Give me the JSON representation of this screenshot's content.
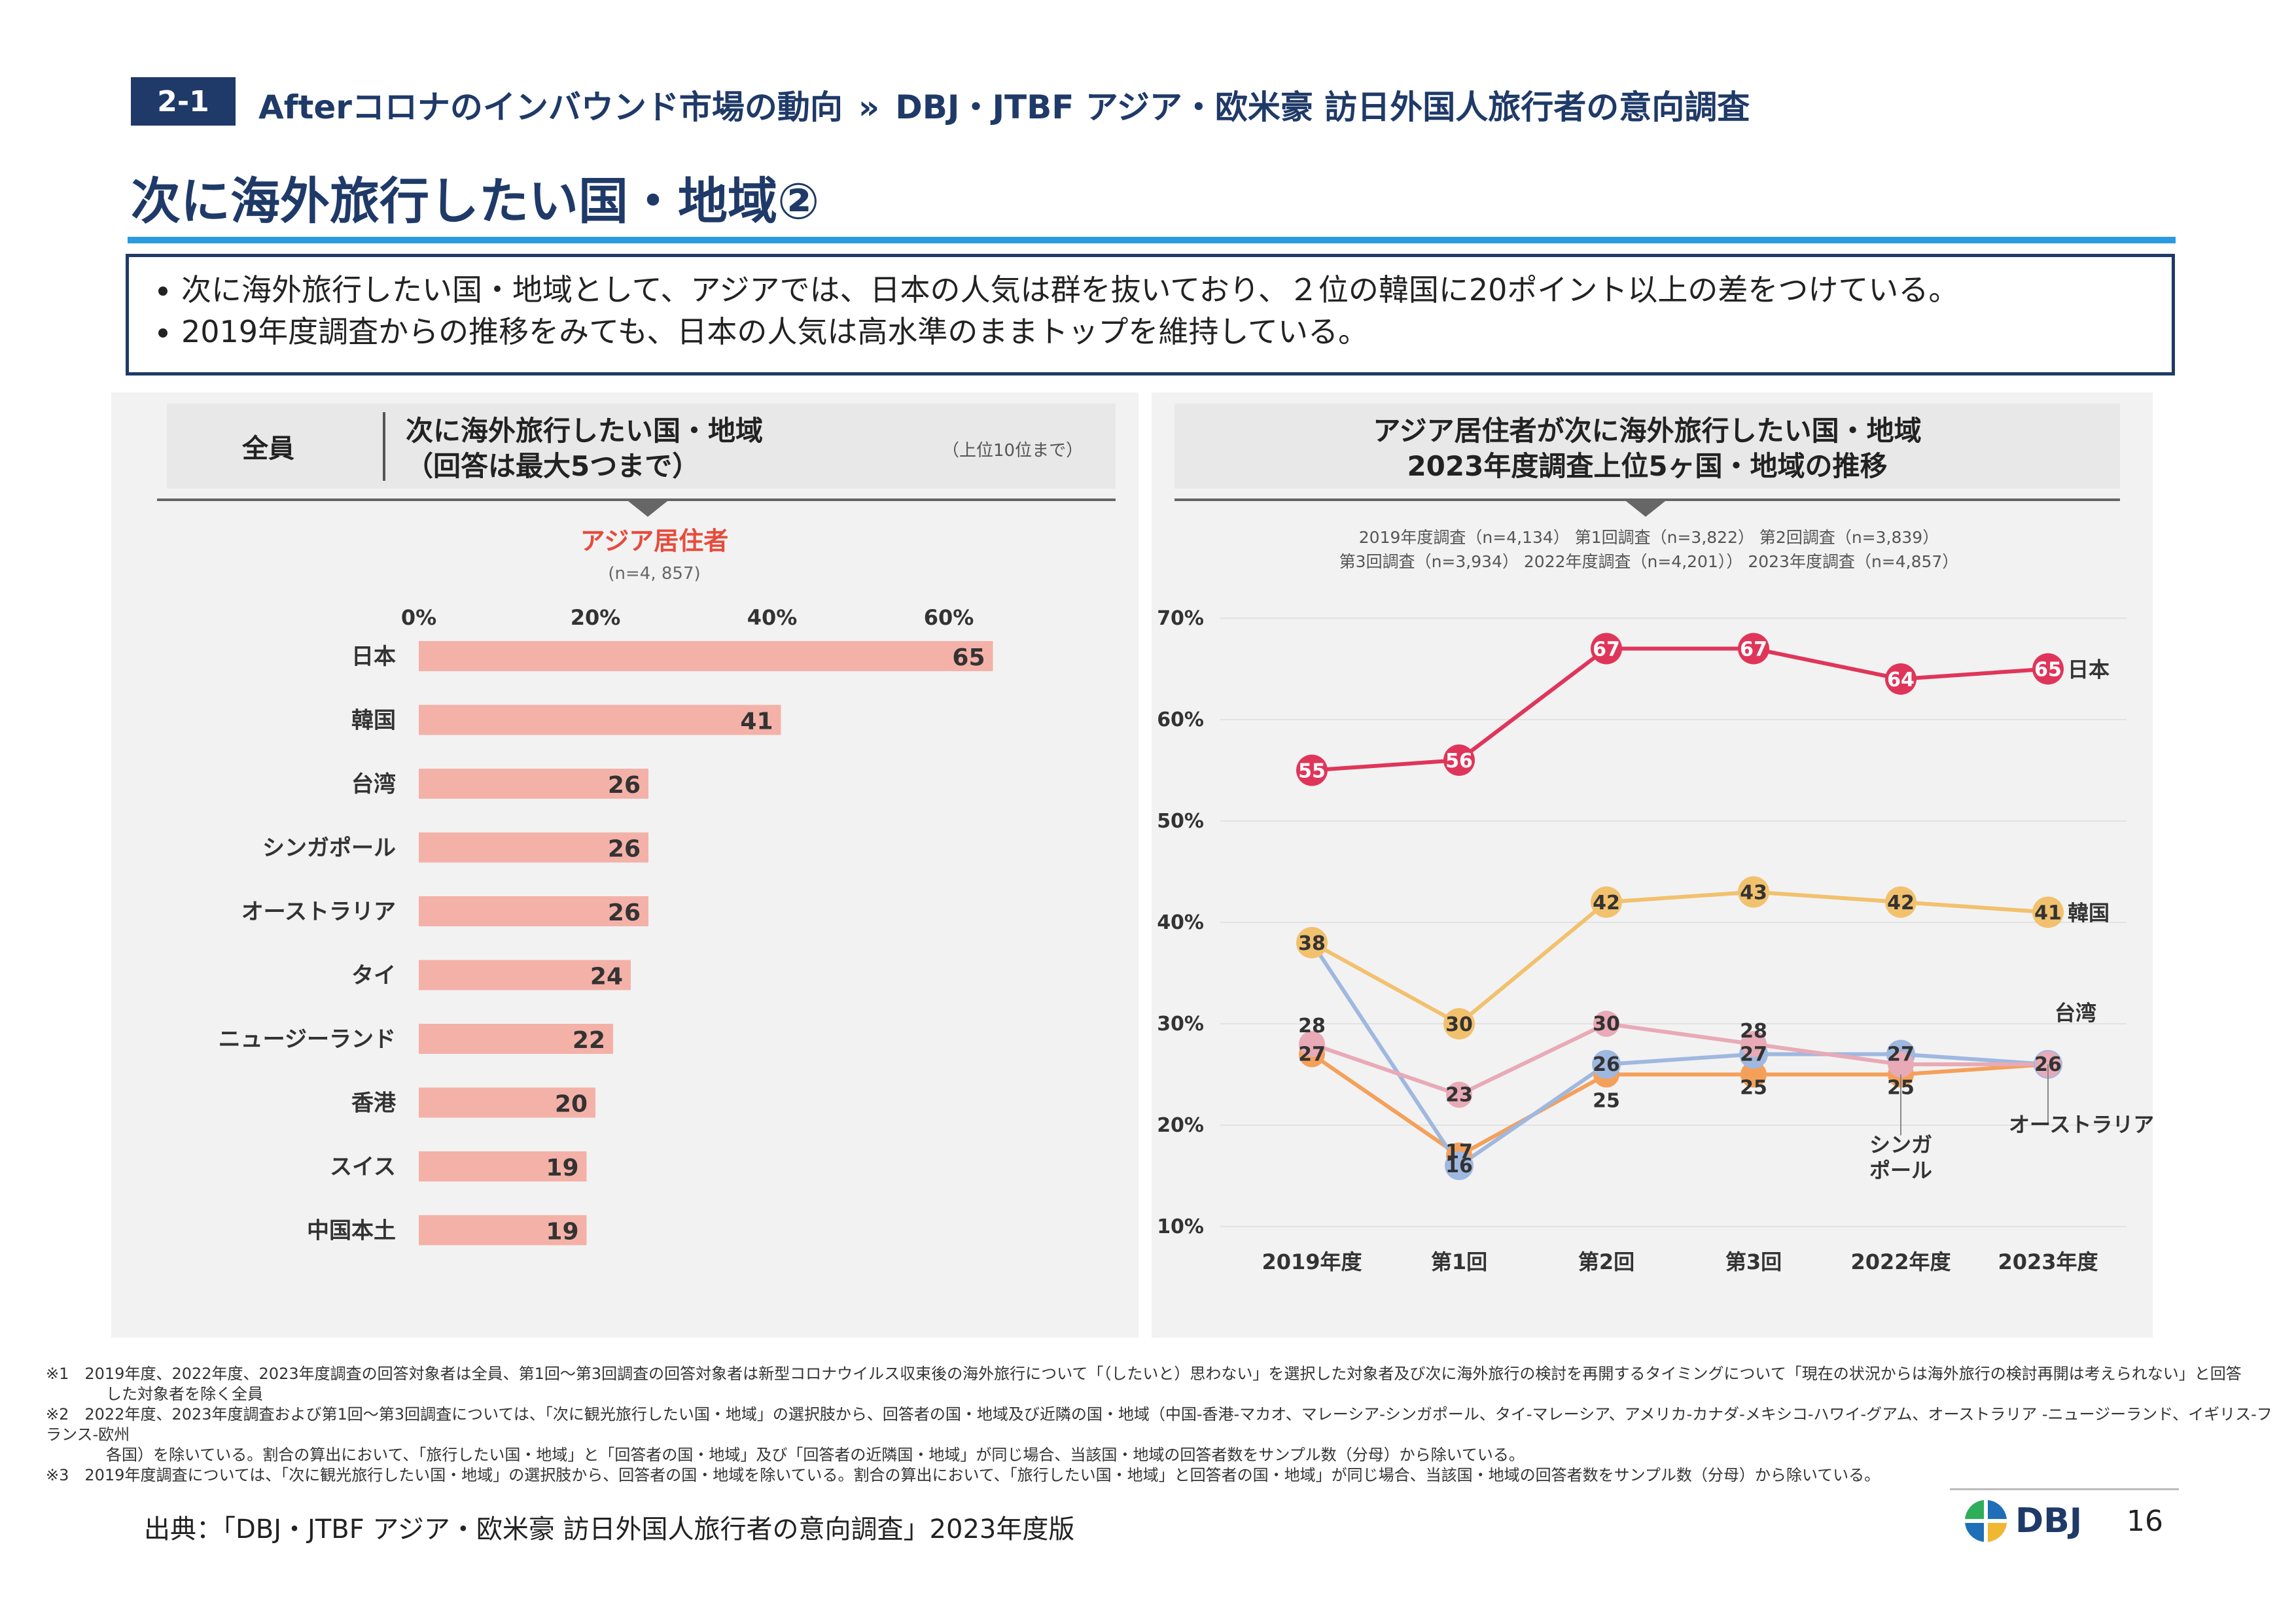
{
  "header": {
    "section": "2-1",
    "breadcrumb_main": "Afterコロナのインバウンド市場の動向",
    "breadcrumb_sep": "»",
    "breadcrumb_sub": "DBJ・JTBF アジア・欧米豪 訪日外国人旅行者の意向調査",
    "title": "次に海外旅行したい国・地域②"
  },
  "summary": [
    "次に海外旅行したい国・地域として、アジアでは、日本の人気は群を抜いており、２位の韓国に20ポイント以上の差をつけている。",
    "2019年度調査からの推移をみても、日本の人気は高水準のままトップを維持している。"
  ],
  "left_panel": {
    "tag": "全員",
    "title_line1": "次に海外旅行したい国・地域",
    "title_line2": "（回答は最大5つまで）",
    "note": "（上位10位まで）"
  },
  "right_panel": {
    "title_line1": "アジア居住者が次に海外旅行したい国・地域",
    "title_line2": "2023年度調査上位5ヶ国・地域の推移"
  },
  "colors": {
    "navy": "#1f3a68",
    "accent_blue": "#2a9be0",
    "bar": "#f4b1a8",
    "japan": "#e0355a",
    "korea": "#f2c16e",
    "taiwan": "#e8aab6",
    "singapore": "#9fb8e0",
    "australia": "#f4a05a"
  },
  "chart_data": [
    {
      "type": "bar",
      "orientation": "horizontal",
      "title": "アジア居住者",
      "subtitle": "(n=4, 857)",
      "categories": [
        "日本",
        "韓国",
        "台湾",
        "シンガポール",
        "オーストラリア",
        "タイ",
        "ニュージーランド",
        "香港",
        "スイス",
        "中国本土"
      ],
      "values": [
        65,
        41,
        26,
        26,
        26,
        24,
        22,
        20,
        19,
        19
      ],
      "xticks": [
        "0%",
        "20%",
        "40%",
        "60%"
      ],
      "xlim": [
        0,
        70
      ]
    },
    {
      "type": "line",
      "legend_line1": "2019年度調査（n=4,134） 第1回調査（n=3,822） 第2回調査（n=3,839）",
      "legend_line2": "第3回調査（n=3,934） 2022年度調査（n=4,201）） 2023年度調査（n=4,857）",
      "categories": [
        "2019年度",
        "第1回",
        "第2回",
        "第3回",
        "2022年度",
        "2023年度"
      ],
      "yticks": [
        "70%",
        "60%",
        "50%",
        "40%",
        "30%",
        "20%",
        "10%"
      ],
      "ylim": [
        10,
        70
      ],
      "series": [
        {
          "name": "日本",
          "values": [
            55,
            56,
            67,
            67,
            64,
            65
          ],
          "color": "#e0355a"
        },
        {
          "name": "韓国",
          "values": [
            38,
            30,
            42,
            43,
            42,
            41
          ],
          "color": "#f2c16e"
        },
        {
          "name": "台湾",
          "values": [
            28,
            23,
            30,
            28,
            26,
            26
          ],
          "color": "#e8aab6"
        },
        {
          "name": "シンガポール",
          "values": [
            38,
            16,
            26,
            27,
            27,
            26
          ],
          "color": "#9fb8e0"
        },
        {
          "name": "オーストラリア",
          "values": [
            27,
            17,
            25,
            25,
            25,
            26
          ],
          "color": "#f4a05a"
        }
      ],
      "labels": {
        "japan": "日本",
        "korea": "韓国",
        "taiwan": "台湾",
        "singapore_1": "シンガ",
        "singapore_2": "ポール",
        "australia": "オーストラリア"
      }
    }
  ],
  "footnotes": [
    "※1　2019年度、2022年度、2023年度調査の回答対象者は全員、第1回～第3回調査の回答対象者は新型コロナウイルス収束後の海外旅行について「（したいと）思わない」を選択した対象者及び次に海外旅行の検討を再開するタイミングについて「現在の状況からは海外旅行の検討再開は考えられない」と回答",
    "した対象者を除く全員",
    "※2　2022年度、2023年度調査および第1回～第3回調査については、「次に観光旅行したい国・地域」の選択肢から、回答者の国・地域及び近隣の国・地域（中国-香港-マカオ、マレーシア-シンガポール、タイ-マレーシア、アメリカ-カナダ-メキシコ-ハワイ-グアム、オーストラリア -ニュージーランド、イギリス-フランス-欧州",
    "各国）を除いている。割合の算出において、「旅行したい国・地域」と「回答者の国・地域」及び「回答者の近隣国・地域」が同じ場合、当該国・地域の回答者数をサンプル数（分母）から除いている。",
    "※3　2019年度調査については、「次に観光旅行したい国・地域」の選択肢から、回答者の国・地域を除いている。割合の算出において、「旅行したい国・地域」と回答者の国・地域」が同じ場合、当該国・地域の回答者数をサンプル数（分母）から除いている。"
  ],
  "footer": {
    "source": "出典：「DBJ・JTBF アジア・欧米豪 訪日外国人旅行者の意向調査」2023年度版",
    "logo": "DBJ",
    "page": "16"
  }
}
